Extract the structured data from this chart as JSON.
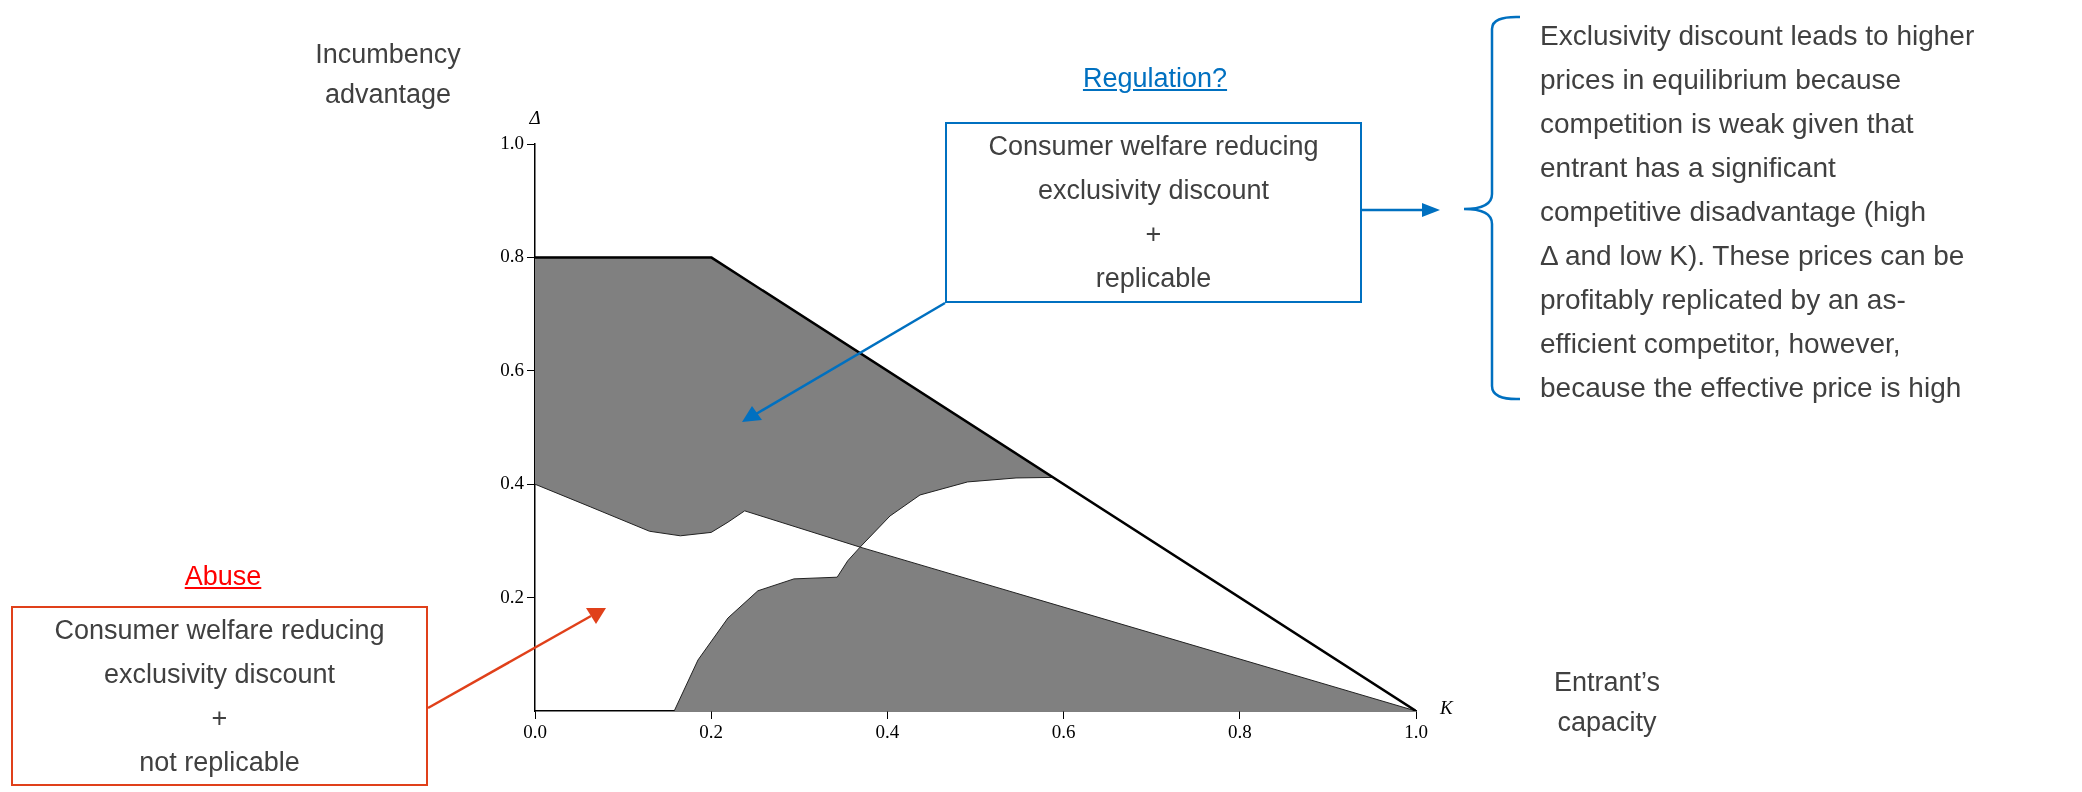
{
  "chart_data": {
    "type": "area",
    "xlabel": "K",
    "ylabel": "Δ",
    "xlim": [
      0,
      1
    ],
    "ylim": [
      0,
      1
    ],
    "xticks": [
      {
        "value": 0,
        "label": "0.0"
      },
      {
        "value": 0.2,
        "label": "0.2"
      },
      {
        "value": 0.4,
        "label": "0.4"
      },
      {
        "value": 0.6,
        "label": "0.6"
      },
      {
        "value": 0.8,
        "label": "0.8"
      },
      {
        "value": 1,
        "label": "1.0"
      }
    ],
    "yticks": [
      {
        "value": 0.2,
        "label": "0.2"
      },
      {
        "value": 0.4,
        "label": "0.4"
      },
      {
        "value": 0.6,
        "label": "0.6"
      },
      {
        "value": 0.8,
        "label": "0.8"
      },
      {
        "value": 1,
        "label": "1.0"
      }
    ],
    "grid": false,
    "legend": false,
    "series": [
      {
        "color": "#808080",
        "x": [
          0,
          0.2,
          0.588,
          0.546,
          0.491,
          0.437,
          0.403,
          0.369,
          0.238,
          0.219,
          0.2,
          0.165,
          0.13,
          0.063,
          0
        ],
        "values": [
          0.8,
          0.8,
          0.412,
          0.411,
          0.404,
          0.381,
          0.344,
          0.289,
          0.353,
          0.333,
          0.315,
          0.309,
          0.317,
          0.36,
          0.4
        ]
      },
      {
        "color": "#808080",
        "x": [
          0.158,
          0.185,
          0.219,
          0.253,
          0.294,
          0.343,
          0.355,
          0.369,
          1
        ],
        "values": [
          0,
          0.09,
          0.164,
          0.212,
          0.233,
          0.236,
          0.265,
          0.289,
          0
        ]
      },
      {
        "type": "line",
        "color": "#000000",
        "x": [
          0,
          0.2,
          1
        ],
        "values": [
          0.8,
          0.8,
          0
        ]
      }
    ],
    "annotations": [
      "Incumbency\nadvantage",
      "Regulation?",
      "Consumer welfare reducing\nexclusivity discount\n+\nreplicable",
      "Abuse",
      "Consumer welfare reducing\nexclusivity discount\n+\nnot replicable",
      "Exclusivity discount leads to higher\nprices in equilibrium because\ncompetition is weak given that\nentrant has a significant\ncompetitive disadvantage (high\nΔ and low K). These prices can be\nprofitably replicated by an as-\nefficient competitor, however,\nbecause the effective price is high",
      "Entrant’s\ncapacity"
    ]
  }
}
